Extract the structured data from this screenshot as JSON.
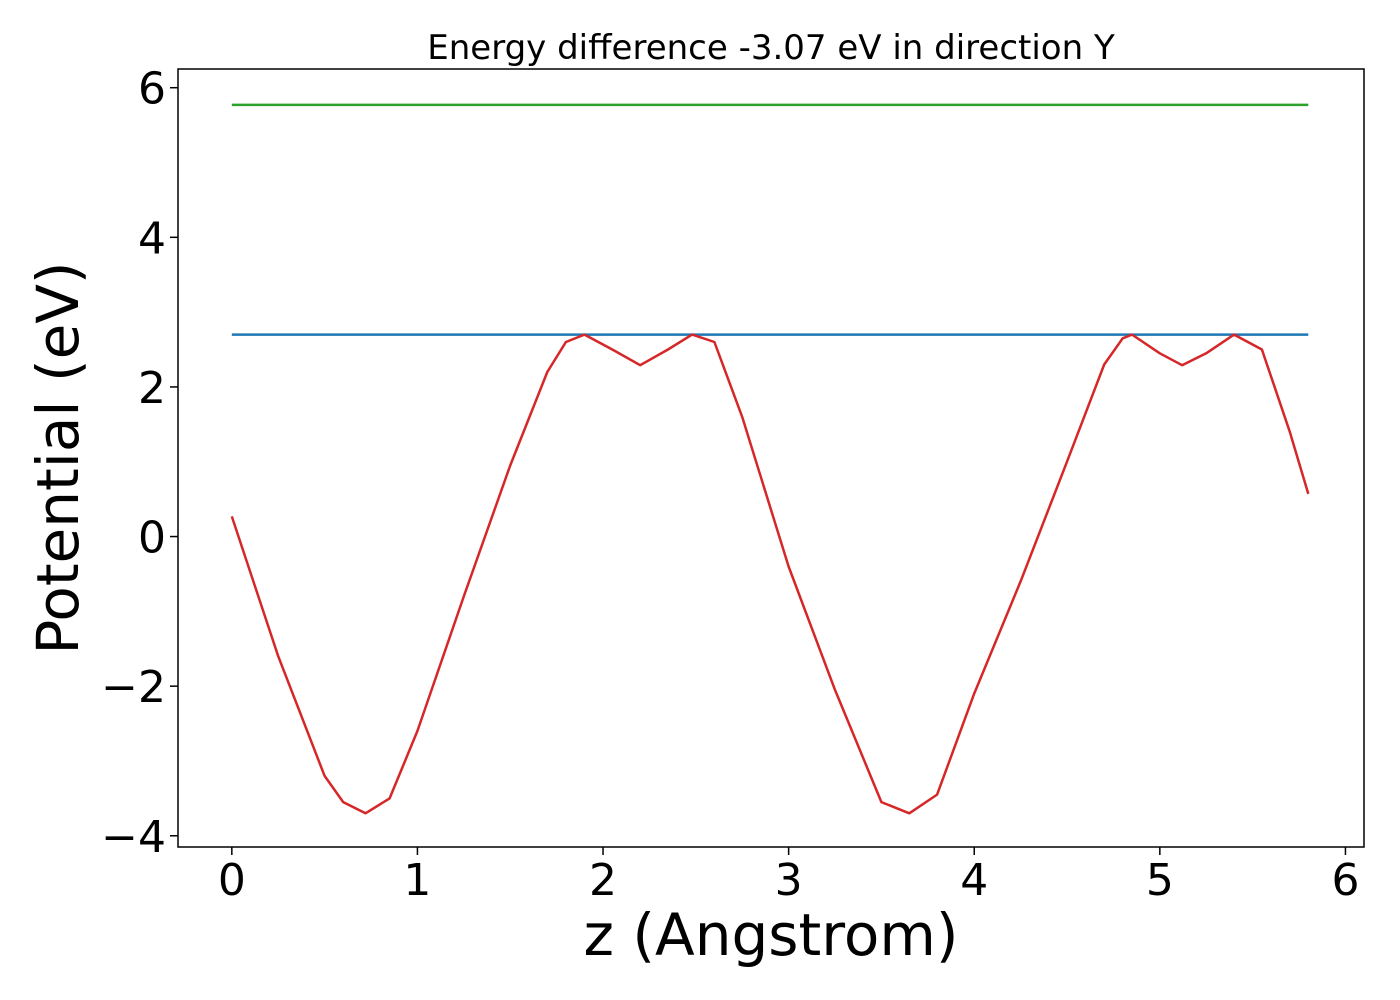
{
  "chart_data": {
    "type": "line",
    "title": "Energy difference -3.07 eV in direction Y",
    "xlabel": "z (Angstrom)",
    "ylabel": "Potential (eV)",
    "xlim": [
      -0.29,
      6.1
    ],
    "ylim": [
      -4.15,
      6.25
    ],
    "xticks": [
      0,
      1,
      2,
      3,
      4,
      5,
      6
    ],
    "yticks": [
      -4,
      -2,
      0,
      2,
      4,
      6
    ],
    "grid": false,
    "legend": "none",
    "series": [
      {
        "color": "#2ca02c",
        "x": [
          0,
          5.8
        ],
        "y": [
          5.77,
          5.77
        ]
      },
      {
        "color": "#1f77b4",
        "x": [
          0,
          5.8
        ],
        "y": [
          2.7,
          2.7
        ]
      },
      {
        "color": "#d62728",
        "x": [
          0,
          0.25,
          0.5,
          0.6,
          0.72,
          0.85,
          1.0,
          1.25,
          1.5,
          1.7,
          1.8,
          1.9,
          2.05,
          2.2,
          2.35,
          2.48,
          2.6,
          2.75,
          3.0,
          3.25,
          3.5,
          3.65,
          3.8,
          4.0,
          4.25,
          4.5,
          4.7,
          4.8,
          4.85,
          5.0,
          5.12,
          5.25,
          5.4,
          5.55,
          5.7,
          5.8
        ],
        "y": [
          0.27,
          -1.6,
          -3.2,
          -3.55,
          -3.7,
          -3.5,
          -2.6,
          -0.8,
          0.95,
          2.2,
          2.6,
          2.7,
          2.5,
          2.29,
          2.5,
          2.7,
          2.6,
          1.6,
          -0.4,
          -2.05,
          -3.55,
          -3.7,
          -3.45,
          -2.1,
          -0.6,
          1.0,
          2.3,
          2.65,
          2.7,
          2.45,
          2.29,
          2.45,
          2.7,
          2.5,
          1.4,
          0.57
        ]
      }
    ]
  }
}
